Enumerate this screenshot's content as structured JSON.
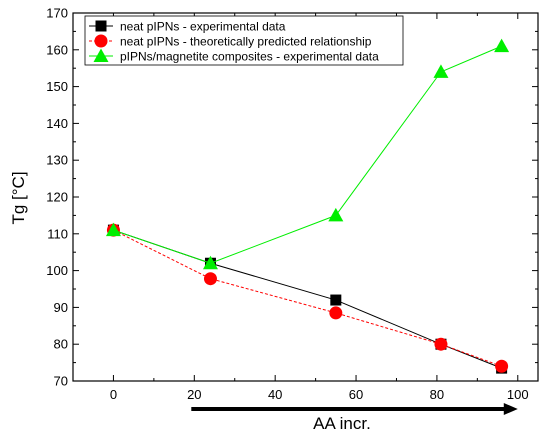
{
  "chart_data": {
    "type": "line",
    "xlabel": "AA incr.",
    "ylabel": "Tg [°C]",
    "xlim": [
      -10,
      105
    ],
    "ylim": [
      70,
      170
    ],
    "x_ticks": [
      0,
      20,
      40,
      60,
      80,
      100
    ],
    "y_ticks": [
      70,
      80,
      90,
      100,
      110,
      120,
      130,
      140,
      150,
      160,
      170
    ],
    "grid": false,
    "legend_position": "top-left",
    "series": [
      {
        "name": "neat pIPNs - experimental data",
        "marker": "square",
        "line_style": "solid",
        "color": "#000000",
        "x": [
          0,
          24,
          55,
          81,
          96
        ],
        "y": [
          111,
          102,
          92,
          80,
          73.5
        ]
      },
      {
        "name": "neat pIPNs - theoretically predicted relationship",
        "marker": "circle",
        "line_style": "dashed",
        "color": "#ff0000",
        "x": [
          0,
          24,
          55,
          81,
          96
        ],
        "y": [
          111,
          97.8,
          88.5,
          80,
          74
        ]
      },
      {
        "name": "pIPNs/magnetite composites - experimental data",
        "marker": "triangle",
        "line_style": "solid",
        "color": "#00ee00",
        "x": [
          0,
          24,
          55,
          81,
          96
        ],
        "y": [
          111,
          102,
          115,
          154,
          161
        ]
      }
    ],
    "annotation": {
      "type": "arrow",
      "direction": "right",
      "from_x": 20,
      "to_x": 100
    }
  }
}
